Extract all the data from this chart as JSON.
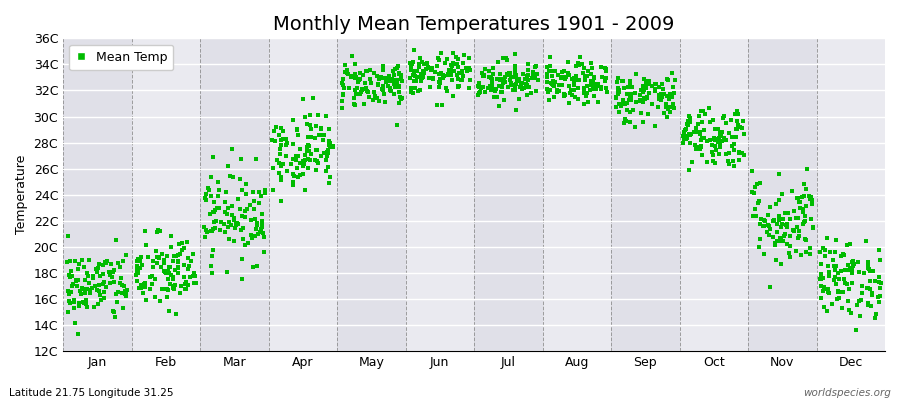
{
  "title": "Monthly Mean Temperatures 1901 - 2009",
  "ylabel": "Temperature",
  "xlabel_months": [
    "Jan",
    "Feb",
    "Mar",
    "Apr",
    "May",
    "Jun",
    "Jul",
    "Aug",
    "Sep",
    "Oct",
    "Nov",
    "Dec"
  ],
  "ylim": [
    12,
    36
  ],
  "yticks": [
    12,
    14,
    16,
    18,
    20,
    22,
    24,
    26,
    28,
    30,
    32,
    34,
    36
  ],
  "ytick_labels": [
    "12C",
    "14C",
    "16C",
    "18C",
    "20C",
    "22C",
    "24C",
    "26C",
    "28C",
    "30C",
    "32C",
    "34C",
    "36C"
  ],
  "dot_color": "#00bb00",
  "bg_color": "#ffffff",
  "stripe_color_dark": "#e0e0e8",
  "stripe_color_light": "#eaeaf0",
  "title_fontsize": 14,
  "axis_fontsize": 9,
  "label_fontsize": 9,
  "footer_left": "Latitude 21.75 Longitude 31.25",
  "footer_right": "worldspecies.org",
  "legend_label": "Mean Temp",
  "mean_temps_by_month": [
    {
      "month": 1,
      "mean": 17.0,
      "std": 1.4
    },
    {
      "month": 2,
      "mean": 18.0,
      "std": 1.5
    },
    {
      "month": 3,
      "mean": 22.5,
      "std": 1.8
    },
    {
      "month": 4,
      "mean": 27.5,
      "std": 1.5
    },
    {
      "month": 5,
      "mean": 32.5,
      "std": 0.9
    },
    {
      "month": 6,
      "mean": 33.2,
      "std": 0.8
    },
    {
      "month": 7,
      "mean": 32.8,
      "std": 0.8
    },
    {
      "month": 8,
      "mean": 32.5,
      "std": 0.8
    },
    {
      "month": 9,
      "mean": 31.5,
      "std": 1.0
    },
    {
      "month": 10,
      "mean": 28.5,
      "std": 1.2
    },
    {
      "month": 11,
      "mean": 22.0,
      "std": 1.8
    },
    {
      "month": 12,
      "mean": 17.5,
      "std": 1.5
    }
  ],
  "n_years": 109,
  "seed": 42
}
